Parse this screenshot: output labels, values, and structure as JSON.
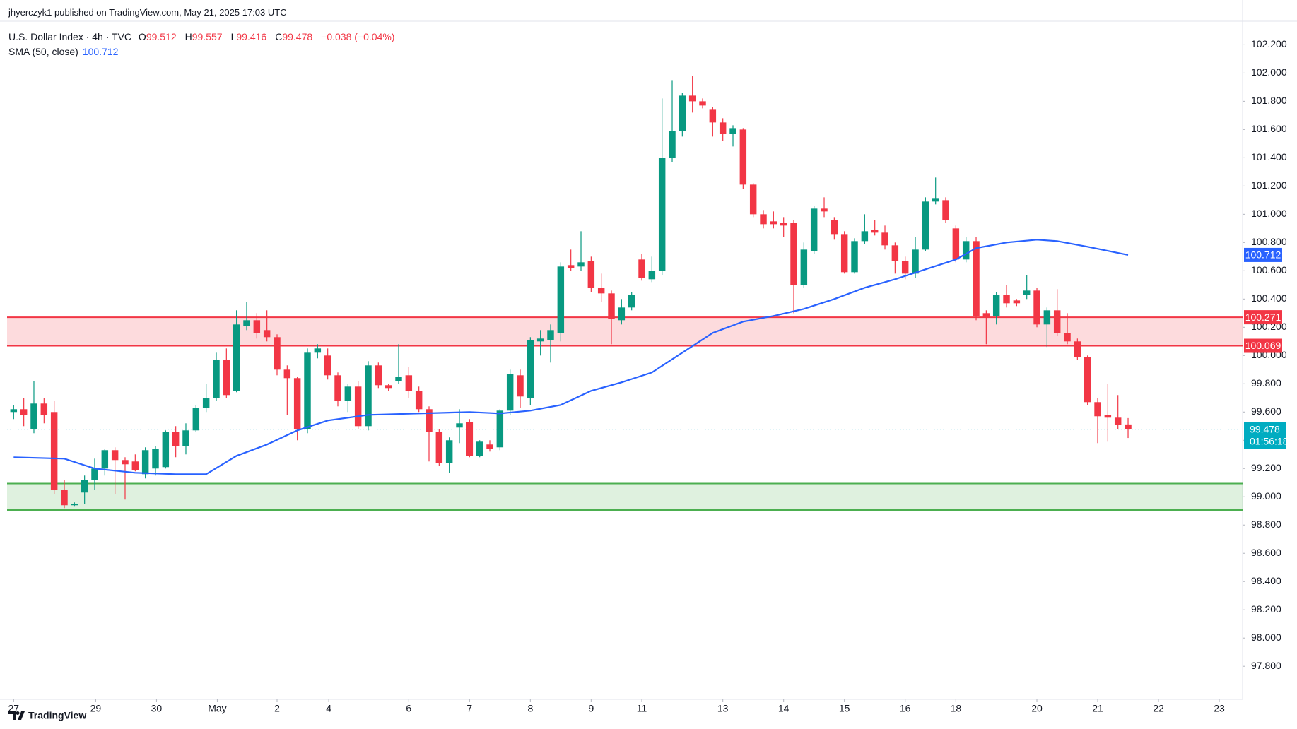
{
  "header": {
    "published": "jhyerczyk1 published on TradingView.com, May 21, 2025 17:03 UTC",
    "symbol": "U.S. Dollar Index · 4h · TVC",
    "ohlc": [
      {
        "key": "O",
        "value": 99.512
      },
      {
        "key": "H",
        "value": 99.557
      },
      {
        "key": "L",
        "value": 99.416
      },
      {
        "key": "C",
        "value": 99.478
      }
    ],
    "change": "−0.038 (−0.04%)",
    "indicator": "SMA (50, close)",
    "indicator_value": 100.712
  },
  "footer": {
    "brand": "TradingView"
  },
  "chart_data": {
    "type": "candlestick",
    "up_color": "#089981",
    "down_color": "#f23645",
    "xlim": [
      -0.65,
      121.3
    ],
    "ylim": [
      97.706,
      102.282
    ],
    "xticks": [
      {
        "value": 0,
        "label": "27"
      },
      {
        "value": 8.1,
        "label": "29"
      },
      {
        "value": 14.1,
        "label": "30"
      },
      {
        "value": 20.1,
        "label": "May"
      },
      {
        "value": 26,
        "label": "2"
      },
      {
        "value": 31.1,
        "label": "4"
      },
      {
        "value": 39,
        "label": "6"
      },
      {
        "value": 45,
        "label": "7"
      },
      {
        "value": 51,
        "label": "8"
      },
      {
        "value": 57,
        "label": "9"
      },
      {
        "value": 62,
        "label": "11"
      },
      {
        "value": 70,
        "label": "13"
      },
      {
        "value": 76,
        "label": "14"
      },
      {
        "value": 82,
        "label": "15"
      },
      {
        "value": 88,
        "label": "16"
      },
      {
        "value": 93,
        "label": "18"
      },
      {
        "value": 101,
        "label": "20"
      },
      {
        "value": 107,
        "label": "21"
      },
      {
        "value": 113,
        "label": "22"
      },
      {
        "value": 119,
        "label": "23"
      }
    ],
    "yticks": [
      {
        "value": 97.8,
        "label": "97.800"
      },
      {
        "value": 98.0,
        "label": "98.000"
      },
      {
        "value": 98.2,
        "label": "98.200"
      },
      {
        "value": 98.4,
        "label": "98.400"
      },
      {
        "value": 98.6,
        "label": "98.600"
      },
      {
        "value": 98.8,
        "label": "98.800"
      },
      {
        "value": 99.0,
        "label": "99.000"
      },
      {
        "value": 99.2,
        "label": "99.200"
      },
      {
        "value": 99.4,
        "label": "99.400"
      },
      {
        "value": 99.6,
        "label": "99.600"
      },
      {
        "value": 99.8,
        "label": "99.800"
      },
      {
        "value": 100.0,
        "label": "100.000"
      },
      {
        "value": 100.2,
        "label": "100.200"
      },
      {
        "value": 100.4,
        "label": "100.400"
      },
      {
        "value": 100.6,
        "label": "100.600"
      },
      {
        "value": 100.8,
        "label": "100.800"
      },
      {
        "value": 101.0,
        "label": "101.000"
      },
      {
        "value": 101.2,
        "label": "101.200"
      },
      {
        "value": 101.4,
        "label": "101.400"
      },
      {
        "value": 101.6,
        "label": "101.600"
      },
      {
        "value": 101.8,
        "label": "101.800"
      },
      {
        "value": 102.0,
        "label": "102.000"
      },
      {
        "value": 102.2,
        "label": "102.200"
      }
    ],
    "candles": {
      "open": [
        99.6,
        99.62,
        99.48,
        99.66,
        99.6,
        99.05,
        98.94,
        99.03,
        99.12,
        99.2,
        99.33,
        99.26,
        99.25,
        99.16,
        99.2,
        99.21,
        99.46,
        99.36,
        99.47,
        99.63,
        99.7,
        99.97,
        99.75,
        100.21,
        100.25,
        100.18,
        100.13,
        99.9,
        99.84,
        99.48,
        100.02,
        100.0,
        99.86,
        99.68,
        99.78,
        99.5,
        99.93,
        99.79,
        99.82,
        99.86,
        99.75,
        99.62,
        99.46,
        99.24,
        99.49,
        99.53,
        99.29,
        99.37,
        99.35,
        99.61,
        99.86,
        99.7,
        100.1,
        100.11,
        100.16,
        100.64,
        100.63,
        100.67,
        100.48,
        100.44,
        100.25,
        100.34,
        100.68,
        100.54,
        100.6,
        101.4,
        101.59,
        101.84,
        101.8,
        101.74,
        101.65,
        101.57,
        101.6,
        101.21,
        101.0,
        100.95,
        100.94,
        100.94,
        100.5,
        100.74,
        101.04,
        100.96,
        100.86,
        100.59,
        100.81,
        100.89,
        100.87,
        100.78,
        100.67,
        100.58,
        100.75,
        101.09,
        101.1,
        100.9,
        100.68,
        100.81,
        100.3,
        100.28,
        100.43,
        100.39,
        100.43,
        100.46,
        100.22,
        100.32,
        100.16,
        100.1,
        99.99,
        99.67,
        99.58,
        99.56,
        99.512
      ],
      "high": [
        99.65,
        99.7,
        99.82,
        99.7,
        99.68,
        99.12,
        98.96,
        99.15,
        99.27,
        99.34,
        99.35,
        99.28,
        99.3,
        99.35,
        99.36,
        99.47,
        99.5,
        99.52,
        99.65,
        99.8,
        100.02,
        100.05,
        100.32,
        100.38,
        100.3,
        100.32,
        100.15,
        99.93,
        99.85,
        100.05,
        100.08,
        100.05,
        99.88,
        99.8,
        99.82,
        99.96,
        99.95,
        99.8,
        100.08,
        99.92,
        99.78,
        99.64,
        99.48,
        99.42,
        99.62,
        99.55,
        99.4,
        99.4,
        99.62,
        99.9,
        99.9,
        100.13,
        100.18,
        100.22,
        100.66,
        100.75,
        100.88,
        100.7,
        100.58,
        100.46,
        100.4,
        100.45,
        100.72,
        100.7,
        101.82,
        101.95,
        101.86,
        101.98,
        101.82,
        101.76,
        101.68,
        101.63,
        101.61,
        101.22,
        101.03,
        101.02,
        100.98,
        100.96,
        100.8,
        101.06,
        101.12,
        100.98,
        100.88,
        100.83,
        101.0,
        100.96,
        100.92,
        100.8,
        100.7,
        100.84,
        101.12,
        101.26,
        101.12,
        100.92,
        100.84,
        100.84,
        100.32,
        100.45,
        100.5,
        100.4,
        100.57,
        100.48,
        100.34,
        100.47,
        100.3,
        100.12,
        100.0,
        99.7,
        99.8,
        99.72,
        99.557
      ],
      "low": [
        99.55,
        99.5,
        99.45,
        99.52,
        99.02,
        98.92,
        98.93,
        98.95,
        99.05,
        99.15,
        99.02,
        98.98,
        99.18,
        99.13,
        99.15,
        99.2,
        99.28,
        99.3,
        99.46,
        99.6,
        99.68,
        99.7,
        99.74,
        100.18,
        100.12,
        100.1,
        99.86,
        99.58,
        99.4,
        99.45,
        99.98,
        99.83,
        99.64,
        99.6,
        99.48,
        99.47,
        99.77,
        99.75,
        99.8,
        99.7,
        99.6,
        99.25,
        99.22,
        99.17,
        99.38,
        99.28,
        99.28,
        99.32,
        99.33,
        99.58,
        99.63,
        99.65,
        100.0,
        99.95,
        100.1,
        100.6,
        100.6,
        100.45,
        100.38,
        100.08,
        100.22,
        100.32,
        100.53,
        100.52,
        100.57,
        101.37,
        101.55,
        101.72,
        101.75,
        101.55,
        101.52,
        101.48,
        101.18,
        100.98,
        100.9,
        100.9,
        100.84,
        100.3,
        100.48,
        100.72,
        100.98,
        100.82,
        100.58,
        100.58,
        100.79,
        100.85,
        100.75,
        100.58,
        100.54,
        100.55,
        100.74,
        101.07,
        100.94,
        100.66,
        100.66,
        100.25,
        100.08,
        100.22,
        100.34,
        100.35,
        100.4,
        100.2,
        100.06,
        100.14,
        100.08,
        99.97,
        99.65,
        99.38,
        99.39,
        99.48,
        99.416
      ],
      "close": [
        99.62,
        99.58,
        99.66,
        99.58,
        99.05,
        98.94,
        98.95,
        99.12,
        99.2,
        99.33,
        99.26,
        99.23,
        99.19,
        99.33,
        99.34,
        99.46,
        99.36,
        99.47,
        99.63,
        99.7,
        99.97,
        99.72,
        100.22,
        100.25,
        100.16,
        100.13,
        99.9,
        99.84,
        99.48,
        100.02,
        100.05,
        99.86,
        99.68,
        99.78,
        99.5,
        99.93,
        99.79,
        99.77,
        99.85,
        99.75,
        99.62,
        99.46,
        99.24,
        99.4,
        99.52,
        99.29,
        99.39,
        99.34,
        99.61,
        99.87,
        99.71,
        100.11,
        100.12,
        100.18,
        100.63,
        100.62,
        100.66,
        100.48,
        100.44,
        100.26,
        100.34,
        100.43,
        100.55,
        100.6,
        101.4,
        101.59,
        101.84,
        101.8,
        101.77,
        101.65,
        101.57,
        101.61,
        101.21,
        101.0,
        100.93,
        100.93,
        100.92,
        100.5,
        100.75,
        101.04,
        101.02,
        100.86,
        100.59,
        100.81,
        100.88,
        100.87,
        100.78,
        100.67,
        100.58,
        100.75,
        101.09,
        101.11,
        100.96,
        100.68,
        100.81,
        100.28,
        100.27,
        100.43,
        100.37,
        100.37,
        100.46,
        100.22,
        100.32,
        100.16,
        100.1,
        99.99,
        99.67,
        99.57,
        99.56,
        99.51,
        99.478
      ]
    },
    "sma": {
      "name": "SMA (50, close)",
      "color": "#2962ff",
      "x": [
        0,
        5,
        8,
        12,
        16,
        19,
        22,
        25,
        28,
        31,
        35,
        40,
        45,
        48,
        51,
        54,
        57,
        60,
        63,
        66,
        69,
        72,
        75,
        78,
        81,
        84,
        87,
        90,
        93,
        95,
        98,
        101,
        103,
        106,
        110
      ],
      "values": [
        99.28,
        99.27,
        99.2,
        99.17,
        99.16,
        99.16,
        99.29,
        99.37,
        99.47,
        99.54,
        99.58,
        99.59,
        99.6,
        99.59,
        99.61,
        99.65,
        99.75,
        99.81,
        99.88,
        100.02,
        100.16,
        100.24,
        100.28,
        100.33,
        100.4,
        100.48,
        100.54,
        100.61,
        100.68,
        100.76,
        100.8,
        100.82,
        100.81,
        100.77,
        100.712
      ]
    },
    "zones": [
      {
        "top": 100.271,
        "bottom": 100.069,
        "color": "#f23645",
        "labeled": true
      },
      {
        "top": 99.094,
        "bottom": 98.906,
        "color": "#4caf50",
        "labeled": false
      }
    ],
    "last_price": 99.478,
    "countdown": "01:56:18",
    "last_color": "#00acc1"
  }
}
